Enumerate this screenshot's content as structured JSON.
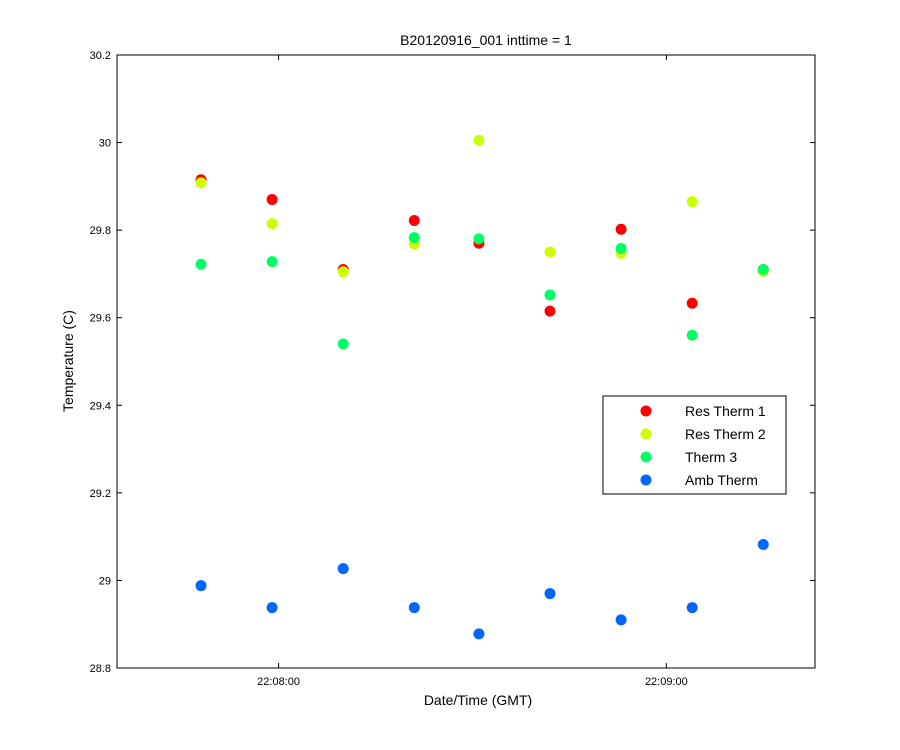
{
  "chart_data": {
    "type": "scatter",
    "title": "B20120916_001 inttime = 1",
    "xlabel": "Date/Time (GMT)",
    "ylabel": "Temperature (C)",
    "xlim": [
      "22:07:35",
      "22:09:23"
    ],
    "ylim": [
      28.8,
      30.2
    ],
    "yticks": [
      28.8,
      29,
      29.2,
      29.4,
      29.6,
      29.8,
      30,
      30.2
    ],
    "ytick_labels": [
      "28.8",
      "29",
      "29.2",
      "29.4",
      "29.6",
      "29.8",
      "30",
      "30.2"
    ],
    "xticks": [
      "22:08:00",
      "22:09:00"
    ],
    "xtick_labels": [
      "22:08:00",
      "22:09:00"
    ],
    "grid": false,
    "legend_position": "right",
    "x": [
      "22:07:48",
      "22:07:59",
      "22:08:10",
      "22:08:21",
      "22:08:31",
      "22:08:42",
      "22:08:53",
      "22:09:04",
      "22:09:15"
    ],
    "series": [
      {
        "name": "Res Therm 1",
        "color": "#ff0000",
        "x": [
          "22:07:48",
          "22:07:59",
          "22:08:10",
          "22:08:21",
          "22:08:31",
          "22:08:42",
          "22:08:53",
          "22:09:04",
          "22:09:15"
        ],
        "values": [
          29.915,
          29.87,
          29.71,
          29.822,
          29.77,
          29.615,
          29.802,
          29.633,
          29.71
        ]
      },
      {
        "name": "Res Therm 2",
        "color": "#ccff00",
        "x": [
          "22:07:48",
          "22:07:59",
          "22:08:10",
          "22:08:21",
          "22:08:31",
          "22:08:42",
          "22:08:53",
          "22:09:04",
          "22:09:15"
        ],
        "values": [
          29.908,
          29.815,
          29.705,
          29.768,
          30.005,
          29.75,
          29.747,
          29.865,
          29.706
        ]
      },
      {
        "name": "Therm 3",
        "color": "#00ff66",
        "x": [
          "22:07:48",
          "22:07:59",
          "22:08:10",
          "22:08:21",
          "22:08:31",
          "22:08:42",
          "22:08:53",
          "22:09:04",
          "22:09:15"
        ],
        "values": [
          29.722,
          29.728,
          29.54,
          29.783,
          29.78,
          29.652,
          29.758,
          29.56,
          29.71
        ]
      },
      {
        "name": "Amb Therm",
        "color": "#0066ff",
        "x": [
          "22:07:48",
          "22:07:59",
          "22:08:10",
          "22:08:21",
          "22:08:31",
          "22:08:42",
          "22:08:53",
          "22:09:04",
          "22:09:15"
        ],
        "values": [
          28.988,
          28.938,
          29.027,
          28.938,
          28.878,
          28.97,
          28.91,
          28.938,
          29.082
        ]
      }
    ]
  }
}
